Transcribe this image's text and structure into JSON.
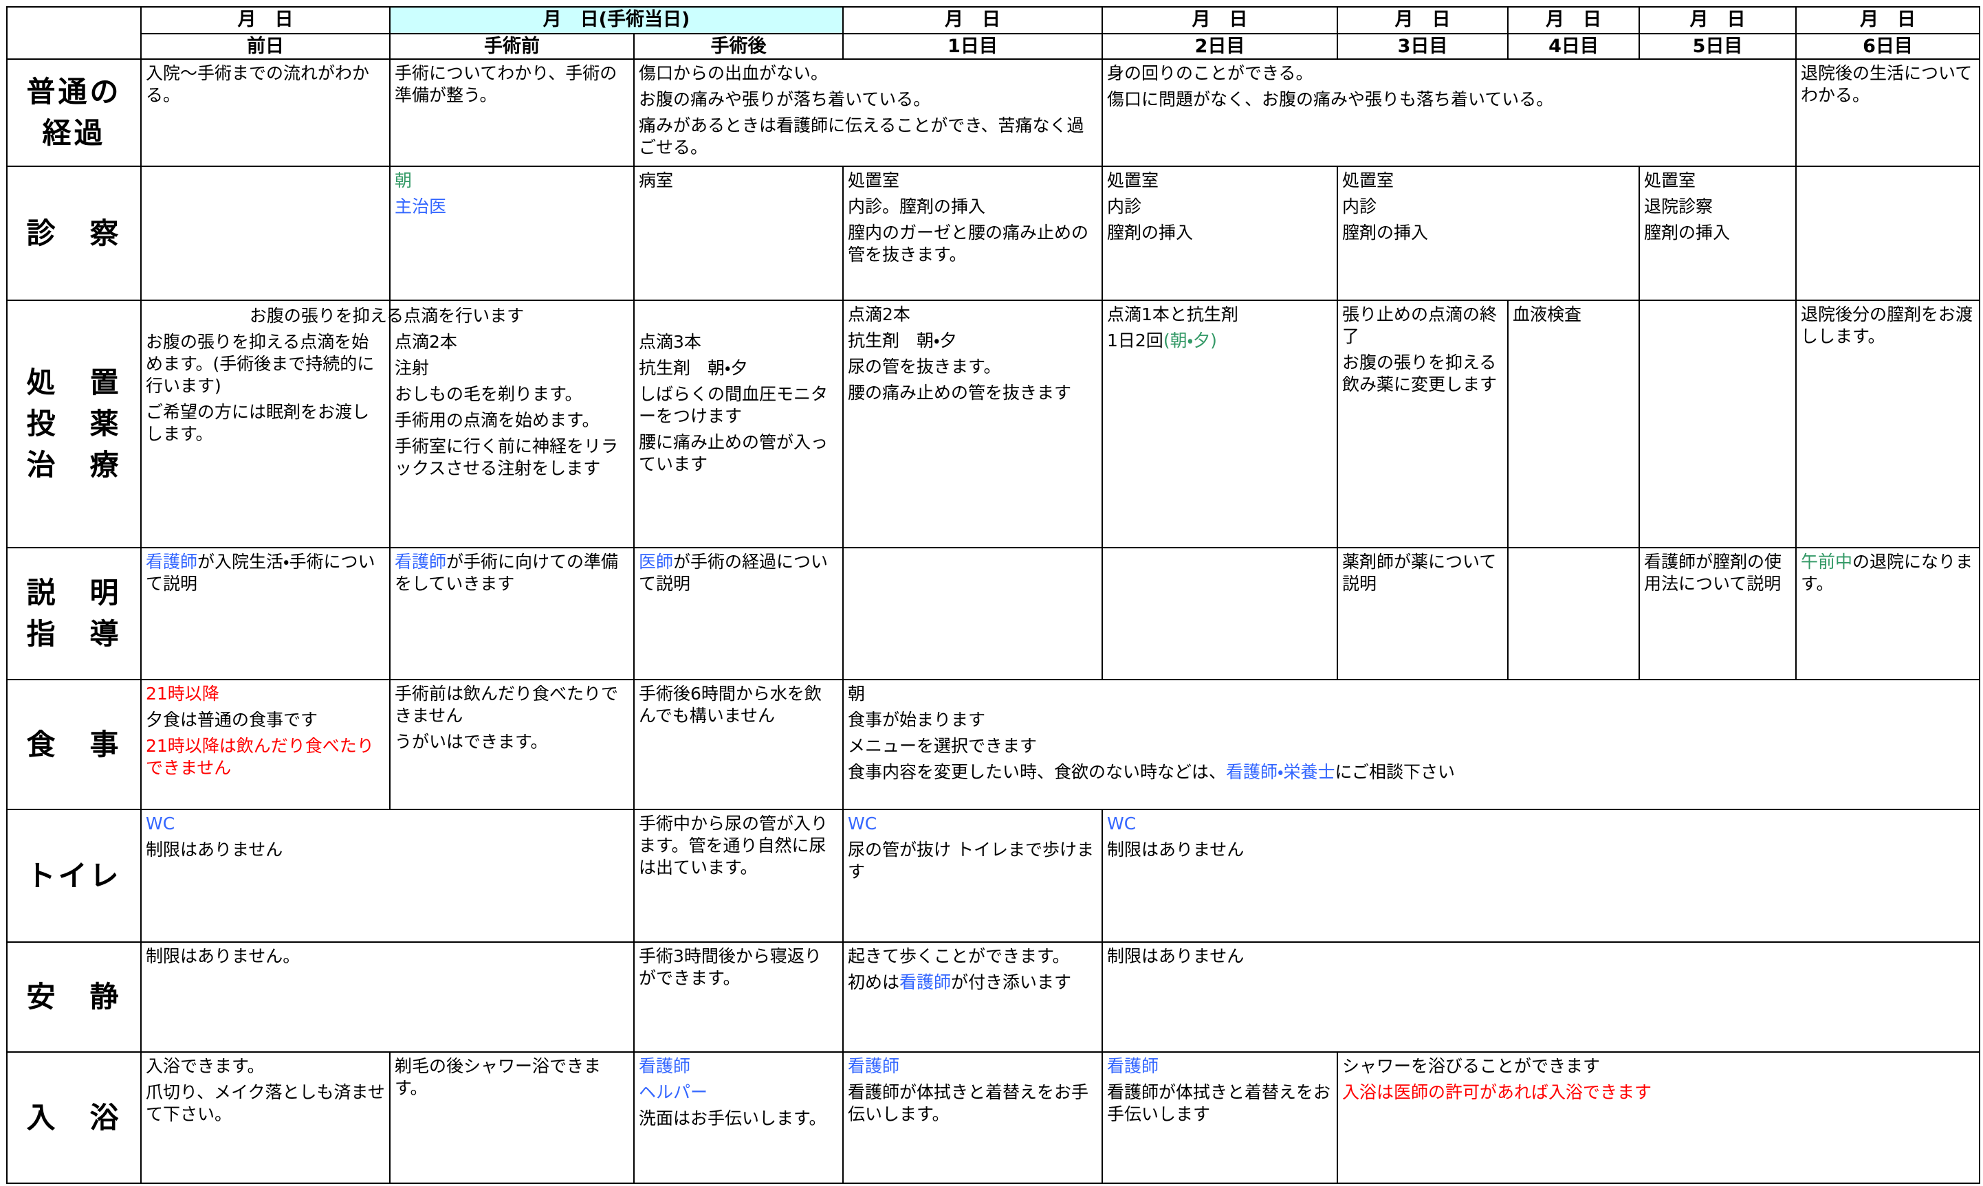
{
  "header": {
    "dates": [
      "月　日",
      "月　日(手術当日)",
      "月　日",
      "月　日",
      "月　日",
      "月　日",
      "月　日",
      "月　日"
    ],
    "days": [
      "前日",
      "手術前",
      "手術後",
      "1日目",
      "2日目",
      "3日目",
      "4日目",
      "5日目",
      "6日目"
    ]
  },
  "rows": [
    {
      "label": [
        "普通の",
        "経過"
      ],
      "cells": [
        {
          "lines": [
            "入院～手術までの流れがわかる。"
          ]
        },
        {
          "lines": [
            "手術についてわかり、手術の準備が整う。"
          ]
        },
        {
          "lines": [
            "傷口からの出血がない。",
            "お腹の痛みや張りが落ち着いている。",
            "痛みがあるときは看護師に伝えることができ、苦痛なく過ごせる。"
          ]
        },
        {
          "lines": [
            "身の回りのことができる。",
            "傷口に問題がなく、お腹の痛みや張りも落ち着いている。"
          ]
        },
        {
          "lines": [
            "退院後の生活についてわかる。"
          ]
        }
      ]
    },
    {
      "label": [
        "診　察"
      ],
      "cells": [
        {
          "lines": []
        },
        {
          "lines": [
            {
              "text": "朝",
              "color": "#339966"
            },
            {
              "text": "主治医",
              "color": "#3366ff"
            }
          ]
        },
        {
          "lines": [
            "病室"
          ]
        },
        {
          "lines": [
            "処置室",
            "内診。膣剤の挿入",
            "膣内のガーゼと腰の痛み止めの管を抜きます。"
          ]
        },
        {
          "lines": [
            "処置室",
            "内診",
            "膣剤の挿入"
          ]
        },
        {
          "lines": [
            "処置室",
            "内診",
            "膣剤の挿入"
          ]
        },
        {
          "lines": [
            "処置室",
            "退院診察",
            "膣剤の挿入"
          ]
        },
        {
          "lines": []
        }
      ]
    },
    {
      "label": [
        "処　置",
        "投　薬",
        "治　療"
      ],
      "banner": "お腹の張りを抑える点滴を行います",
      "cells": [
        {
          "lines": [
            "お腹の張りを抑える点滴を始めます。(手術後まで持続的に行います)",
            "ご希望の方には眠剤をお渡しします。"
          ]
        },
        {
          "lines": [
            "点滴2本",
            "注射",
            "おしもの毛を剃ります。",
            "手術用の点滴を始めます。",
            "手術室に行く前に神経をリラックスさせる注射をします"
          ]
        },
        {
          "lines": [
            "点滴3本",
            "抗生剤　朝・夕",
            "しばらくの間血圧モニターをつけます",
            "腰に痛み止めの管が入っています"
          ]
        },
        {
          "lines": [
            "点滴2本",
            "抗生剤　朝・夕",
            "尿の管を抜きます。",
            "腰の痛み止めの管を抜きます"
          ]
        },
        {
          "lines": [
            "点滴1本と抗生剤",
            [
              "1日2回",
              {
                "text": "(朝・夕)",
                "color": "#339966"
              }
            ]
          ]
        },
        {
          "lines": [
            "張り止めの点滴の終了",
            "お腹の張りを抑える飲み薬に変更します"
          ]
        },
        {
          "lines": [
            "血液検査"
          ]
        },
        {
          "lines": []
        },
        {
          "lines": [
            "退院後分の膣剤をお渡しします。"
          ]
        }
      ]
    },
    {
      "label": [
        "説　明",
        "指　導"
      ],
      "cells": [
        {
          "lines": [
            [
              {
                "text": "看護師",
                "color": "#3366ff"
              },
              "が入院生活・手術について説明"
            ]
          ]
        },
        {
          "lines": [
            [
              {
                "text": "看護師",
                "color": "#3366ff"
              },
              "が手術に向けての準備をしていきます"
            ]
          ]
        },
        {
          "lines": [
            [
              {
                "text": "医師",
                "color": "#3366ff"
              },
              "が手術の経過について説明"
            ]
          ]
        },
        {
          "lines": []
        },
        {
          "lines": []
        },
        {
          "lines": [
            "薬剤師が薬について説明"
          ]
        },
        {
          "lines": []
        },
        {
          "lines": [
            "看護師が膣剤の使用法について説明"
          ]
        },
        {
          "lines": [
            [
              {
                "text": "午前中",
                "color": "#339966"
              },
              "の退院になります。"
            ]
          ]
        }
      ]
    },
    {
      "label": [
        "食　事"
      ],
      "cells": [
        {
          "lines": [
            {
              "text": "21時以降",
              "color": "#ff0000"
            },
            "夕食は普通の食事です",
            {
              "text": "21時以降は飲んだり食べたりできません",
              "color": "#ff0000"
            }
          ]
        },
        {
          "lines": [
            "手術前は飲んだり食べたりできません",
            "うがいはできます。"
          ]
        },
        {
          "lines": [
            "手術後6時間から水を飲んでも構いません"
          ]
        },
        {
          "lines": [
            "朝",
            "食事が始まります",
            "メニューを選択できます",
            [
              "食事内容を変更したい時、食欲のない時などは、",
              {
                "text": "看護師・栄養士",
                "color": "#3366ff"
              },
              "にご相談下さい"
            ]
          ]
        }
      ]
    },
    {
      "label": [
        "トイレ"
      ],
      "cells": [
        {
          "lines": [
            {
              "text": "WC",
              "color": "#3366ff"
            },
            "制限はありません"
          ]
        },
        {
          "lines": [
            "手術中から尿の管が入ります。管を通り自然に尿は出ています。"
          ]
        },
        {
          "lines": [
            {
              "text": "WC",
              "color": "#3366ff"
            },
            "尿の管が抜け トイレまで歩けます"
          ]
        },
        {
          "lines": [
            {
              "text": "WC",
              "color": "#3366ff"
            },
            "制限はありません"
          ]
        }
      ]
    },
    {
      "label": [
        "安　静"
      ],
      "cells": [
        {
          "lines": [
            "制限はありません。"
          ]
        },
        {
          "lines": [
            "手術3時間後から寝返りができます。"
          ]
        },
        {
          "lines": [
            "起きて歩くことができます。",
            [
              "初めは",
              {
                "text": "看護師",
                "color": "#3366ff"
              },
              "が付き添います"
            ]
          ]
        },
        {
          "lines": [
            "制限はありません"
          ]
        }
      ]
    },
    {
      "label": [
        "入　浴"
      ],
      "cells": [
        {
          "lines": [
            "入浴できます。",
            "爪切り、メイク落としも済ませて下さい。"
          ]
        },
        {
          "lines": [
            "剃毛の後シャワー浴できます。"
          ]
        },
        {
          "lines": [
            {
              "text": "看護師",
              "color": "#3366ff"
            },
            {
              "text": "ヘルパー",
              "color": "#3366ff"
            },
            "洗面はお手伝いします。"
          ]
        },
        {
          "lines": [
            {
              "text": "看護師",
              "color": "#3366ff"
            },
            "看護師が体拭きと着替えをお手伝いします。"
          ]
        },
        {
          "lines": [
            {
              "text": "看護師",
              "color": "#3366ff"
            },
            "看護師が体拭きと着替えをお手伝いします"
          ]
        },
        {
          "lines": [
            "シャワーを浴びることができます",
            {
              "text": "入浴は医師の許可があれば入浴できます",
              "color": "#ff0000"
            }
          ]
        }
      ]
    }
  ]
}
